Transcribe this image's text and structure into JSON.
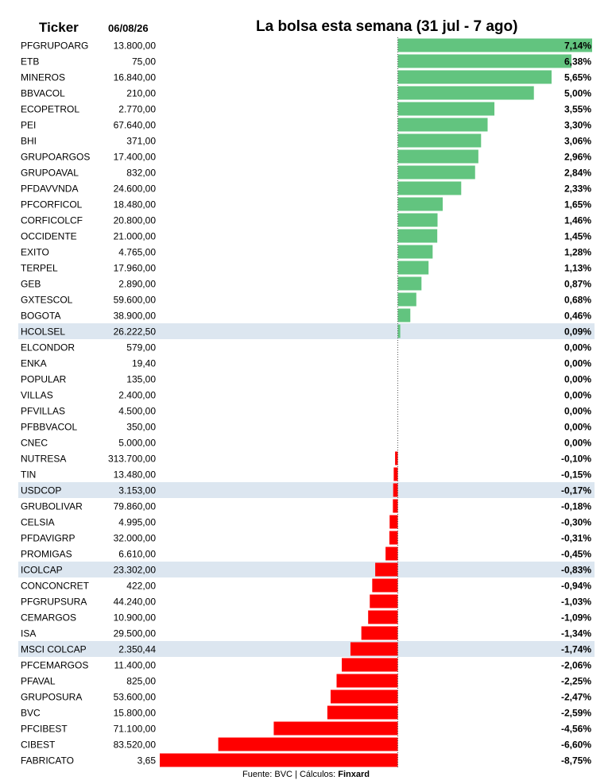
{
  "header": {
    "ticker_label": "Ticker",
    "date": "06/08/26",
    "title": "La bolsa esta semana (31 jul - 7 ago)"
  },
  "footer": {
    "source": "Fuente: BVC | Cálculos: ",
    "brand": "Finxard"
  },
  "colors": {
    "positive": "#62c47f",
    "negative": "#ff0000",
    "highlight_row": "#dce6f0",
    "zero_line": "#555555"
  },
  "chart_data": {
    "type": "bar",
    "orientation": "horizontal",
    "title": "La bolsa esta semana (31 jul - 7 ago)",
    "xlim": [
      -8.75,
      7.14
    ],
    "grid": false,
    "rows": [
      {
        "ticker": "PFGRUPOARG",
        "price": "13.800,00",
        "change": 7.14,
        "label": "7,14%",
        "highlight": false
      },
      {
        "ticker": "ETB",
        "price": "75,00",
        "change": 6.38,
        "label": "6,38%",
        "highlight": false
      },
      {
        "ticker": "MINEROS",
        "price": "16.840,00",
        "change": 5.65,
        "label": "5,65%",
        "highlight": false
      },
      {
        "ticker": "BBVACOL",
        "price": "210,00",
        "change": 5.0,
        "label": "5,00%",
        "highlight": false
      },
      {
        "ticker": "ECOPETROL",
        "price": "2.770,00",
        "change": 3.55,
        "label": "3,55%",
        "highlight": false
      },
      {
        "ticker": "PEI",
        "price": "67.640,00",
        "change": 3.3,
        "label": "3,30%",
        "highlight": false
      },
      {
        "ticker": "BHI",
        "price": "371,00",
        "change": 3.06,
        "label": "3,06%",
        "highlight": false
      },
      {
        "ticker": "GRUPOARGOS",
        "price": "17.400,00",
        "change": 2.96,
        "label": "2,96%",
        "highlight": false
      },
      {
        "ticker": "GRUPOAVAL",
        "price": "832,00",
        "change": 2.84,
        "label": "2,84%",
        "highlight": false
      },
      {
        "ticker": "PFDAVVNDA",
        "price": "24.600,00",
        "change": 2.33,
        "label": "2,33%",
        "highlight": false
      },
      {
        "ticker": "PFCORFICOL",
        "price": "18.480,00",
        "change": 1.65,
        "label": "1,65%",
        "highlight": false
      },
      {
        "ticker": "CORFICOLCF",
        "price": "20.800,00",
        "change": 1.46,
        "label": "1,46%",
        "highlight": false
      },
      {
        "ticker": "OCCIDENTE",
        "price": "21.000,00",
        "change": 1.45,
        "label": "1,45%",
        "highlight": false
      },
      {
        "ticker": "EXITO",
        "price": "4.765,00",
        "change": 1.28,
        "label": "1,28%",
        "highlight": false
      },
      {
        "ticker": "TERPEL",
        "price": "17.960,00",
        "change": 1.13,
        "label": "1,13%",
        "highlight": false
      },
      {
        "ticker": "GEB",
        "price": "2.890,00",
        "change": 0.87,
        "label": "0,87%",
        "highlight": false
      },
      {
        "ticker": "GXTESCOL",
        "price": "59.600,00",
        "change": 0.68,
        "label": "0,68%",
        "highlight": false
      },
      {
        "ticker": "BOGOTA",
        "price": "38.900,00",
        "change": 0.46,
        "label": "0,46%",
        "highlight": false
      },
      {
        "ticker": "HCOLSEL",
        "price": "26.222,50",
        "change": 0.09,
        "label": "0,09%",
        "highlight": true
      },
      {
        "ticker": "ELCONDOR",
        "price": "579,00",
        "change": 0.0,
        "label": "0,00%",
        "highlight": false
      },
      {
        "ticker": "ENKA",
        "price": "19,40",
        "change": 0.0,
        "label": "0,00%",
        "highlight": false
      },
      {
        "ticker": "POPULAR",
        "price": "135,00",
        "change": 0.0,
        "label": "0,00%",
        "highlight": false
      },
      {
        "ticker": "VILLAS",
        "price": "2.400,00",
        "change": 0.0,
        "label": "0,00%",
        "highlight": false
      },
      {
        "ticker": "PFVILLAS",
        "price": "4.500,00",
        "change": 0.0,
        "label": "0,00%",
        "highlight": false
      },
      {
        "ticker": "PFBBVACOL",
        "price": "350,00",
        "change": 0.0,
        "label": "0,00%",
        "highlight": false
      },
      {
        "ticker": "CNEC",
        "price": "5.000,00",
        "change": 0.0,
        "label": "0,00%",
        "highlight": false
      },
      {
        "ticker": "NUTRESA",
        "price": "313.700,00",
        "change": -0.1,
        "label": "-0,10%",
        "highlight": false
      },
      {
        "ticker": "TIN",
        "price": "13.480,00",
        "change": -0.15,
        "label": "-0,15%",
        "highlight": false
      },
      {
        "ticker": "USDCOP",
        "price": "3.153,00",
        "change": -0.17,
        "label": "-0,17%",
        "highlight": true
      },
      {
        "ticker": "GRUBOLIVAR",
        "price": "79.860,00",
        "change": -0.18,
        "label": "-0,18%",
        "highlight": false
      },
      {
        "ticker": "CELSIA",
        "price": "4.995,00",
        "change": -0.3,
        "label": "-0,30%",
        "highlight": false
      },
      {
        "ticker": "PFDAVIGRP",
        "price": "32.000,00",
        "change": -0.31,
        "label": "-0,31%",
        "highlight": false
      },
      {
        "ticker": "PROMIGAS",
        "price": "6.610,00",
        "change": -0.45,
        "label": "-0,45%",
        "highlight": false
      },
      {
        "ticker": "ICOLCAP",
        "price": "23.302,00",
        "change": -0.83,
        "label": "-0,83%",
        "highlight": true
      },
      {
        "ticker": "CONCONCRET",
        "price": "422,00",
        "change": -0.94,
        "label": "-0,94%",
        "highlight": false
      },
      {
        "ticker": "PFGRUPSURA",
        "price": "44.240,00",
        "change": -1.03,
        "label": "-1,03%",
        "highlight": false
      },
      {
        "ticker": "CEMARGOS",
        "price": "10.900,00",
        "change": -1.09,
        "label": "-1,09%",
        "highlight": false
      },
      {
        "ticker": "ISA",
        "price": "29.500,00",
        "change": -1.34,
        "label": "-1,34%",
        "highlight": false
      },
      {
        "ticker": "MSCI COLCAP",
        "price": "2.350,44",
        "change": -1.74,
        "label": "-1,74%",
        "highlight": true
      },
      {
        "ticker": "PFCEMARGOS",
        "price": "11.400,00",
        "change": -2.06,
        "label": "-2,06%",
        "highlight": false
      },
      {
        "ticker": "PFAVAL",
        "price": "825,00",
        "change": -2.25,
        "label": "-2,25%",
        "highlight": false
      },
      {
        "ticker": "GRUPOSURA",
        "price": "53.600,00",
        "change": -2.47,
        "label": "-2,47%",
        "highlight": false
      },
      {
        "ticker": "BVC",
        "price": "15.800,00",
        "change": -2.59,
        "label": "-2,59%",
        "highlight": false
      },
      {
        "ticker": "PFCIBEST",
        "price": "71.100,00",
        "change": -4.56,
        "label": "-4,56%",
        "highlight": false
      },
      {
        "ticker": "CIBEST",
        "price": "83.520,00",
        "change": -6.6,
        "label": "-6,60%",
        "highlight": false
      },
      {
        "ticker": "FABRICATO",
        "price": "3,65",
        "change": -8.75,
        "label": "-8,75%",
        "highlight": false
      }
    ]
  }
}
